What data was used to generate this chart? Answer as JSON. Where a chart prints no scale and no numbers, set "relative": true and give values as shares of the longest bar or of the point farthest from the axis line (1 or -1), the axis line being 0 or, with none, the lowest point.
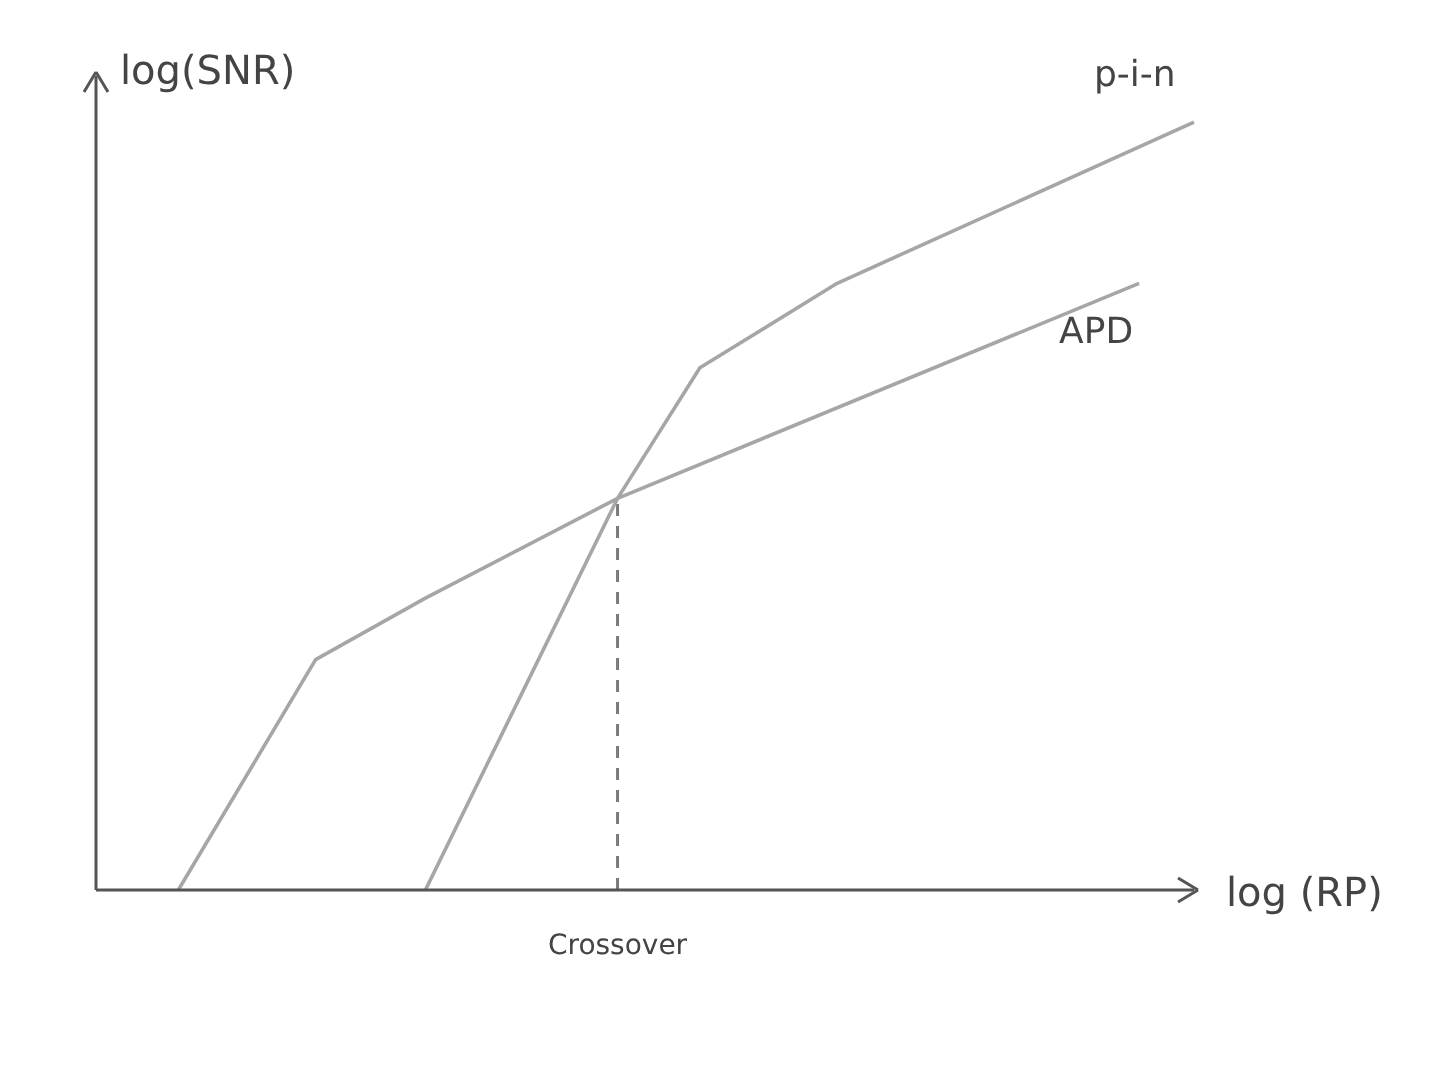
{
  "chart_data": {
    "type": "line",
    "relative": true,
    "xlabel": "log (RP)",
    "ylabel": "log(SNR)",
    "legend": false,
    "marker": "none",
    "line_style": "solid",
    "categories": [
      null,
      null,
      null,
      null,
      null,
      null,
      null,
      null,
      null,
      null,
      null,
      null,
      null,
      null,
      null,
      null,
      null,
      null,
      null,
      null,
      null,
      null,
      null,
      null,
      null,
      null,
      null,
      null,
      null,
      null,
      null,
      null,
      null,
      null,
      null,
      null,
      null,
      null,
      null,
      null,
      null
    ],
    "series": [
      {
        "name": "p-i-n",
        "color": "#a6a6a6",
        "values": [
          null,
          null,
          null,
          null,
          null,
          null,
          null,
          null,
          null,
          null,
          null,
          null,
          0,
          null,
          null,
          null,
          null,
          null,
          null,
          0.51,
          null,
          null,
          0.68,
          null,
          null,
          null,
          null,
          0.79,
          null,
          null,
          null,
          null,
          null,
          null,
          null,
          null,
          null,
          null,
          null,
          null,
          1
        ]
      },
      {
        "name": "APD",
        "color": "#a6a6a6",
        "values": [
          null,
          null,
          null,
          0,
          null,
          null,
          null,
          null,
          0.3,
          null,
          null,
          null,
          0.38,
          null,
          null,
          null,
          null,
          null,
          null,
          0.51,
          null,
          null,
          null,
          null,
          null,
          null,
          null,
          null,
          null,
          null,
          null,
          null,
          null,
          null,
          null,
          null,
          null,
          null,
          0.79,
          null,
          null
        ]
      }
    ],
    "ref_lines": [
      {
        "axis": "x",
        "label": "Crossover",
        "color": "#7a7a7a",
        "line_style": "dashed"
      }
    ]
  }
}
